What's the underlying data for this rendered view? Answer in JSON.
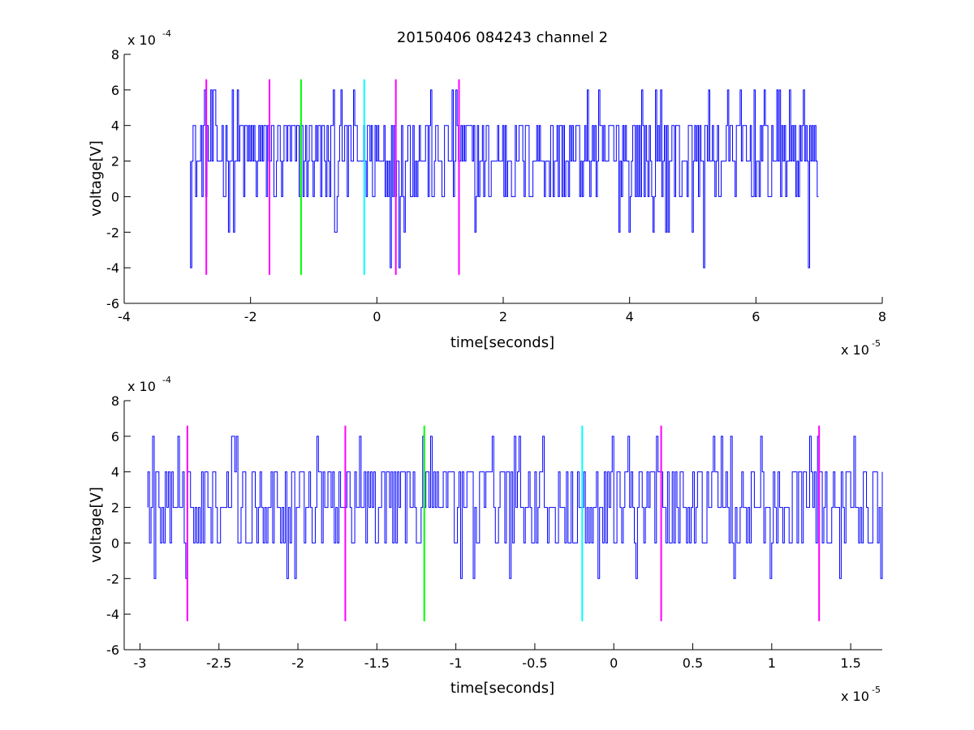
{
  "chart_data": [
    {
      "type": "line",
      "title": "20150406 084243 channel 2",
      "xlabel": "time[seconds]",
      "ylabel": "voltage[V]",
      "x_multiplier_label": "x 10",
      "x_multiplier_exp": "-5",
      "y_multiplier_label": "x 10",
      "y_multiplier_exp": "-4",
      "xlim": [
        -4,
        8
      ],
      "ylim": [
        -6,
        8
      ],
      "x_ticks": [
        -4,
        -2,
        0,
        2,
        4,
        6,
        8
      ],
      "x_tick_labels": [
        "-4",
        "-2",
        "0",
        "2",
        "4",
        "6",
        "8"
      ],
      "y_ticks": [
        -6,
        -4,
        -2,
        0,
        2,
        4,
        6,
        8
      ],
      "y_tick_labels": [
        "-6",
        "-4",
        "-2",
        "0",
        "2",
        "4",
        "6",
        "8"
      ],
      "grid": false,
      "series": [
        {
          "color": "#0000ff",
          "x_range": [
            -2.95,
            7.0
          ],
          "sample_step": 0.02,
          "levels": [
            -4,
            -2,
            0,
            2,
            4,
            6
          ],
          "random_seed": 12345
        }
      ],
      "markers": [
        {
          "x": -2.7,
          "y_range": [
            -4.4,
            6.6
          ],
          "color": "#ff00ff"
        },
        {
          "x": -1.7,
          "y_range": [
            -4.4,
            6.6
          ],
          "color": "#ff00ff"
        },
        {
          "x": -1.2,
          "y_range": [
            -4.4,
            6.6
          ],
          "color": "#00ff00"
        },
        {
          "x": -0.2,
          "y_range": [
            -4.4,
            6.6
          ],
          "color": "#00ffff"
        },
        {
          "x": 0.3,
          "y_range": [
            -4.4,
            6.6
          ],
          "color": "#ff00ff"
        },
        {
          "x": 1.3,
          "y_range": [
            -4.4,
            6.6
          ],
          "color": "#ff00ff"
        }
      ]
    },
    {
      "type": "line",
      "title": "",
      "xlabel": "time[seconds]",
      "ylabel": "voltage[V]",
      "x_multiplier_label": "x 10",
      "x_multiplier_exp": "-5",
      "y_multiplier_label": "x 10",
      "y_multiplier_exp": "-4",
      "xlim": [
        -3.1,
        1.7
      ],
      "ylim": [
        -6,
        8
      ],
      "x_ticks": [
        -3,
        -2.5,
        -2,
        -1.5,
        -1,
        -0.5,
        0,
        0.5,
        1,
        1.5
      ],
      "x_tick_labels": [
        "-3",
        "-2.5",
        "-2",
        "-1.5",
        "-1",
        "-0.5",
        "0",
        "0.5",
        "1",
        "1.5"
      ],
      "y_ticks": [
        -6,
        -4,
        -2,
        0,
        2,
        4,
        6,
        8
      ],
      "y_tick_labels": [
        "-6",
        "-4",
        "-2",
        "0",
        "2",
        "4",
        "6",
        "8"
      ],
      "grid": false,
      "series": [
        {
          "color": "#0000ff",
          "x_range": [
            -2.95,
            1.7
          ],
          "sample_step": 0.01,
          "levels": [
            -2,
            0,
            2,
            4,
            6
          ],
          "random_seed": 6789
        }
      ],
      "markers": [
        {
          "x": -2.7,
          "y_range": [
            -4.4,
            6.6
          ],
          "color": "#ff00ff"
        },
        {
          "x": -1.7,
          "y_range": [
            -4.4,
            6.6
          ],
          "color": "#ff00ff"
        },
        {
          "x": -1.2,
          "y_range": [
            -4.4,
            6.6
          ],
          "color": "#00ff00"
        },
        {
          "x": -0.2,
          "y_range": [
            -4.4,
            6.6
          ],
          "color": "#00ffff"
        },
        {
          "x": 0.3,
          "y_range": [
            -4.4,
            6.6
          ],
          "color": "#ff00ff"
        },
        {
          "x": 1.3,
          "y_range": [
            -4.4,
            6.6
          ],
          "color": "#ff00ff"
        }
      ]
    }
  ]
}
